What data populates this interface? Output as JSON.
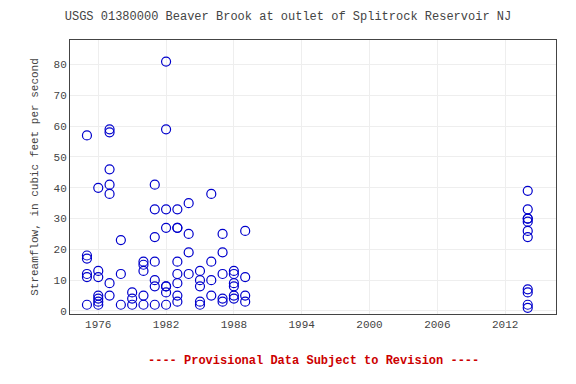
{
  "chart_data": {
    "type": "scatter",
    "title": "USGS 01380000 Beaver Brook at outlet of Splitrock Reservoir NJ",
    "ylabel": "Streamflow, in cubic feet per second",
    "annotations": [
      {
        "text": "---- Provisional Data Subject to Revision ----",
        "color": "#cc0000"
      }
    ],
    "x": [
      1975,
      1975,
      1975,
      1975,
      1975,
      1975,
      1976,
      1976,
      1976,
      1976,
      1976,
      1976,
      1976,
      1977,
      1977,
      1977,
      1977,
      1977,
      1977,
      1977,
      1978,
      1978,
      1978,
      1979,
      1979,
      1979,
      1980,
      1980,
      1980,
      1980,
      1980,
      1981,
      1981,
      1981,
      1981,
      1981,
      1981,
      1981,
      1982,
      1982,
      1982,
      1982,
      1982,
      1982,
      1982,
      1982,
      1983,
      1983,
      1983,
      1983,
      1983,
      1983,
      1983,
      1983,
      1984,
      1984,
      1984,
      1984,
      1985,
      1985,
      1985,
      1985,
      1985,
      1986,
      1986,
      1986,
      1986,
      1987,
      1987,
      1987,
      1987,
      1987,
      1988,
      1988,
      1988,
      1988,
      1988,
      1988,
      1989,
      1989,
      1989,
      1989,
      2014,
      2014,
      2014,
      2014,
      2014,
      2014,
      2014,
      2014,
      2014,
      2014,
      2014
    ],
    "values": [
      57,
      18,
      17,
      12,
      11,
      2,
      40,
      13,
      11,
      5,
      4,
      3,
      2,
      59,
      58,
      46,
      41,
      38,
      9,
      5,
      23,
      12,
      2,
      6,
      4,
      2,
      16,
      15,
      13,
      5,
      2,
      41,
      33,
      24,
      16,
      10,
      8,
      2,
      81,
      59,
      33,
      27,
      8,
      8,
      6,
      2,
      33,
      27,
      27,
      16,
      12,
      9,
      5,
      3,
      35,
      25,
      19,
      12,
      13,
      10,
      8,
      3,
      2,
      38,
      16,
      10,
      5,
      25,
      19,
      12,
      4,
      3,
      13,
      12,
      9,
      8,
      5,
      4,
      26,
      11,
      5,
      3,
      39,
      33,
      30,
      30,
      29,
      26,
      24,
      7,
      6,
      2,
      1
    ],
    "color": "#0000cc",
    "marker": "circle-open",
    "xlim": [
      1973.5,
      2016.5
    ],
    "ylim": [
      -1,
      88
    ],
    "xticks": [
      1976,
      1982,
      1988,
      1994,
      2000,
      2006,
      2012
    ],
    "yticks": [
      0,
      10,
      20,
      30,
      40,
      50,
      60,
      70,
      80
    ],
    "grid": true
  }
}
